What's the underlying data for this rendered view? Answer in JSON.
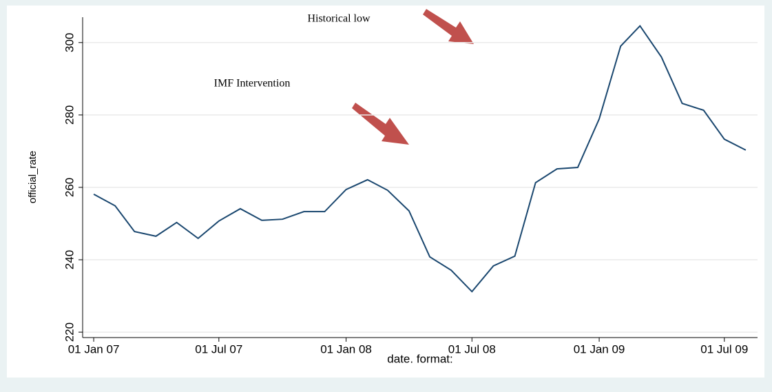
{
  "chart_data": {
    "type": "line",
    "x_label": "date.  format:",
    "y_label": "official_rate",
    "annotations": [
      "Historical low",
      "IMF Intervention"
    ],
    "x": [
      "2007-01-01",
      "2007-02-01",
      "2007-03-01",
      "2007-04-01",
      "2007-05-01",
      "2007-06-01",
      "2007-07-01",
      "2007-08-01",
      "2007-09-01",
      "2007-10-01",
      "2007-11-01",
      "2007-12-01",
      "2008-01-01",
      "2008-02-01",
      "2008-03-01",
      "2008-04-01",
      "2008-05-01",
      "2008-06-01",
      "2008-07-01",
      "2008-08-01",
      "2008-09-01",
      "2008-10-01",
      "2008-11-01",
      "2008-12-01",
      "2009-01-01",
      "2009-02-01",
      "2009-03-01",
      "2009-04-01",
      "2009-05-01",
      "2009-06-01",
      "2009-07-01",
      "2009-08-01"
    ],
    "series": [
      {
        "name": "official_rate",
        "color": "#1a476f",
        "values": [
          258.1,
          254.9,
          247.8,
          246.5,
          250.3,
          245.9,
          250.7,
          254.1,
          250.9,
          251.2,
          253.3,
          253.3,
          259.4,
          262.1,
          259.2,
          253.5,
          240.8,
          237.1,
          231.2,
          238.3,
          241.0,
          261.3,
          265.1,
          265.5,
          278.9,
          299.0,
          304.6,
          296.0,
          283.2,
          281.3,
          273.3,
          270.3
        ]
      }
    ],
    "xlim": [
      "2006-12-16",
      "2009-08-18"
    ],
    "xticks": [
      {
        "value": "2007-01-01",
        "label": "01 Jan 07"
      },
      {
        "value": "2007-07-01",
        "label": "01 Jul 07"
      },
      {
        "value": "2008-01-01",
        "label": "01 Jan 08"
      },
      {
        "value": "2008-07-01",
        "label": "01 Jul 08"
      },
      {
        "value": "2009-01-01",
        "label": "01 Jan 09"
      },
      {
        "value": "2009-07-01",
        "label": "01 Jul 09"
      }
    ],
    "ylim": [
      218.5,
      307
    ],
    "yticks": [
      220,
      240,
      260,
      280,
      300
    ],
    "grid": true
  }
}
